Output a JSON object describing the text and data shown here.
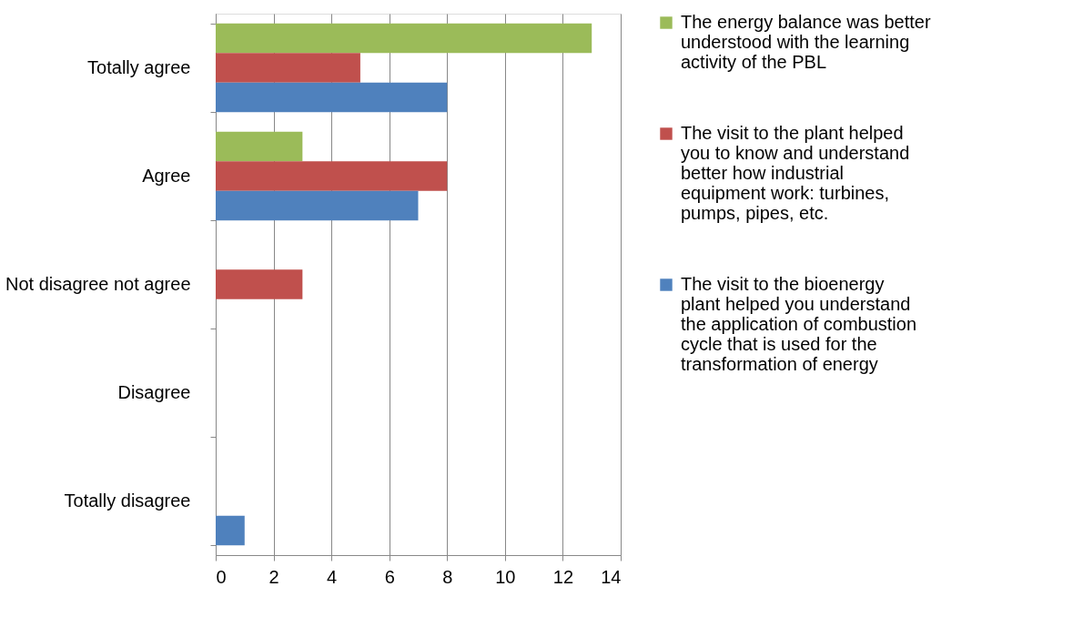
{
  "chart_data": {
    "type": "bar",
    "orientation": "horizontal",
    "categories": [
      "Totally agree",
      "Agree",
      "Not disagree not agree",
      "Disagree",
      "Totally disagree"
    ],
    "series": [
      {
        "name": "The energy balance was better understood with the learning activity of the PBL",
        "color": "#9bbb59",
        "values": [
          13,
          3,
          0,
          0,
          0
        ]
      },
      {
        "name": "The visit to the plant helped you to know and understand better how industrial equipment work: turbines, pumps, pipes, etc.",
        "color": "#c0504d",
        "values": [
          5,
          8,
          3,
          0,
          0
        ]
      },
      {
        "name": "The visit to the bioenergy plant helped you understand the application of combustion cycle that is used for the transformation of energy",
        "color": "#4f81bd",
        "values": [
          8,
          7,
          0,
          0,
          1
        ]
      }
    ],
    "xlim": [
      0,
      14
    ],
    "xticks": [
      0,
      2,
      4,
      6,
      8,
      10,
      12,
      14
    ],
    "grid": "x",
    "legend": "right"
  }
}
